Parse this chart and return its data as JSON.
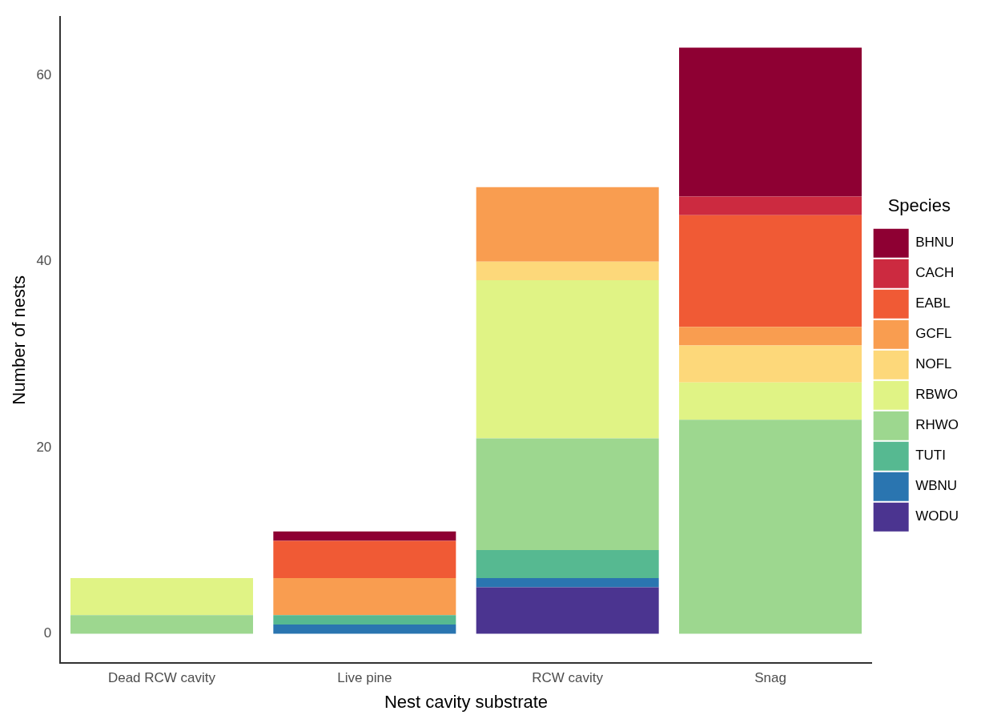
{
  "chart_data": {
    "type": "bar",
    "stacked": true,
    "xlabel": "Nest cavity substrate",
    "ylabel": "Number of nests",
    "legend_title": "Species",
    "legend": "right",
    "grid": false,
    "categories": [
      "Dead RCW cavity",
      "Live pine",
      "RCW cavity",
      "Snag"
    ],
    "ylim": [
      -3.15,
      66.3
    ],
    "yticks": [
      0,
      20,
      40,
      60
    ],
    "series": [
      {
        "name": "WODU",
        "color": "#4b3490",
        "values": [
          null,
          null,
          5,
          null
        ]
      },
      {
        "name": "WBNU",
        "color": "#2a75b0",
        "values": [
          null,
          1,
          1,
          null
        ]
      },
      {
        "name": "TUTI",
        "color": "#56b991",
        "values": [
          null,
          1,
          3,
          null
        ]
      },
      {
        "name": "RHWO",
        "color": "#9dd78f",
        "values": [
          2,
          null,
          12,
          23
        ]
      },
      {
        "name": "RBWO",
        "color": "#e0f385",
        "values": [
          4,
          null,
          17,
          4
        ]
      },
      {
        "name": "NOFL",
        "color": "#fdd87a",
        "values": [
          null,
          null,
          2,
          4
        ]
      },
      {
        "name": "GCFL",
        "color": "#f99d50",
        "values": [
          null,
          4,
          8,
          2
        ]
      },
      {
        "name": "EABL",
        "color": "#f05a35",
        "values": [
          null,
          4,
          null,
          12
        ]
      },
      {
        "name": "CACH",
        "color": "#cc2a40",
        "values": [
          null,
          null,
          null,
          2
        ]
      },
      {
        "name": "BHNU",
        "color": "#8e0033",
        "values": [
          null,
          1,
          null,
          16
        ]
      }
    ]
  }
}
